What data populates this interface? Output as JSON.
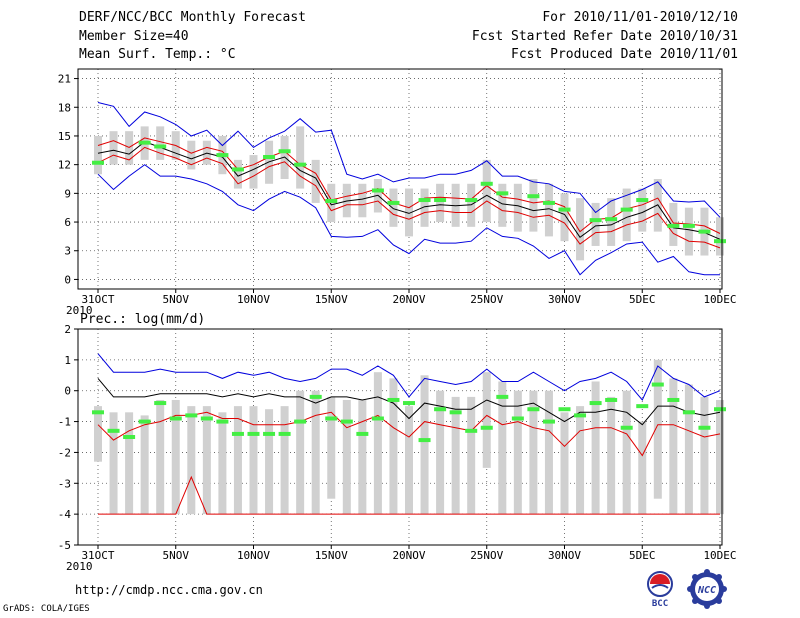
{
  "header": {
    "title": "DERF/NCC/BCC Monthly Forecast",
    "member_size": "Member Size=40",
    "variable": "Mean Surf. Temp.: °C",
    "period": "For 2010/11/01-2010/12/10",
    "started": "Fcst Started Refer Date 2010/10/31",
    "produced": "Fcst Produced Date 2010/11/01"
  },
  "footer": {
    "url": "http://cmdp.ncc.cma.gov.cn",
    "credit": "GrADS: COLA/IGES",
    "logo_bcc": "BCC",
    "logo_ncc": "NCC"
  },
  "colors": {
    "box": "#d0d0d0",
    "median": "#000000",
    "quartile": "#e00000",
    "extreme": "#0000dd",
    "observed": "#44ee44",
    "grid": "#555555"
  },
  "chart_data": [
    {
      "type": "box",
      "title": "Mean Surf. Temp.: °C",
      "ylim": [
        -1,
        22
      ],
      "yticks": [
        0,
        3,
        6,
        9,
        12,
        15,
        18,
        21
      ],
      "xlabels": [
        "31OCT",
        "5NOV",
        "10NOV",
        "15NOV",
        "20NOV",
        "25NOV",
        "30NOV",
        "5DEC",
        "10DEC"
      ],
      "xlabel_positions": [
        1,
        6,
        11,
        16,
        21,
        26,
        31,
        36,
        41
      ],
      "year_label": "2010",
      "x_range": [
        1,
        41
      ],
      "series": {
        "max": [
          18.5,
          18.1,
          16.0,
          17.5,
          17.0,
          16.2,
          15.0,
          15.6,
          14.0,
          15.5,
          13.8,
          14.8,
          15.5,
          16.8,
          15.4,
          15.6,
          11.0,
          10.5,
          11.0,
          10.2,
          10.6,
          10.6,
          11.0,
          11.0,
          11.4,
          12.4,
          10.8,
          10.8,
          10.2,
          10.0,
          9.2,
          9.0,
          7.0,
          8.2,
          8.8,
          9.4,
          10.2,
          8.2,
          8.1,
          8.2,
          6.5
        ],
        "q75": [
          14.0,
          14.5,
          13.8,
          14.8,
          14.4,
          14.0,
          13.2,
          13.8,
          13.4,
          11.5,
          12.0,
          12.8,
          13.4,
          12.0,
          11.1,
          8.3,
          8.7,
          9.0,
          9.5,
          8.0,
          7.5,
          8.5,
          8.6,
          8.5,
          8.4,
          9.8,
          8.6,
          8.4,
          8.0,
          8.2,
          7.6,
          5.0,
          6.3,
          6.4,
          7.4,
          7.8,
          8.5,
          5.9,
          5.8,
          5.6,
          4.8
        ],
        "median": [
          13.2,
          13.5,
          13.1,
          14.4,
          13.8,
          13.2,
          12.6,
          13.2,
          12.8,
          10.8,
          11.5,
          12.3,
          12.8,
          11.4,
          10.6,
          7.8,
          8.2,
          8.4,
          8.8,
          7.4,
          6.9,
          7.6,
          7.8,
          7.7,
          7.8,
          8.8,
          7.9,
          7.7,
          7.2,
          7.4,
          6.8,
          4.4,
          5.6,
          5.7,
          6.5,
          7.0,
          7.8,
          5.4,
          5.2,
          4.9,
          4.2
        ],
        "q25": [
          12.2,
          13.0,
          12.5,
          13.8,
          13.2,
          12.7,
          12.0,
          12.7,
          12.1,
          10.0,
          10.8,
          11.8,
          12.3,
          10.8,
          9.8,
          7.2,
          7.8,
          7.8,
          8.2,
          6.8,
          6.3,
          7.0,
          7.2,
          7.0,
          7.0,
          8.2,
          7.2,
          7.0,
          6.5,
          6.7,
          5.9,
          3.7,
          4.9,
          5.0,
          5.7,
          6.1,
          6.9,
          4.8,
          4.0,
          3.9,
          3.3
        ],
        "min": [
          11.0,
          9.4,
          10.8,
          12.0,
          10.8,
          10.8,
          10.5,
          10.0,
          9.2,
          7.8,
          7.2,
          8.4,
          9.2,
          8.6,
          7.5,
          4.5,
          4.4,
          4.5,
          5.2,
          3.6,
          2.7,
          4.2,
          3.8,
          3.8,
          4.0,
          5.4,
          4.5,
          4.3,
          3.5,
          2.2,
          3.0,
          0.5,
          2.0,
          2.8,
          3.7,
          3.9,
          1.8,
          2.4,
          0.8,
          0.5,
          0.5
        ],
        "box_low": [
          11.0,
          12.0,
          12.0,
          12.5,
          12.5,
          12.5,
          11.5,
          12.0,
          11.0,
          9.5,
          9.5,
          10.0,
          10.5,
          9.5,
          8.0,
          6.0,
          6.5,
          6.5,
          7.0,
          5.5,
          4.5,
          5.5,
          6.0,
          5.5,
          5.5,
          6.0,
          5.5,
          5.0,
          5.0,
          4.5,
          4.0,
          2.0,
          3.5,
          3.5,
          4.0,
          5.0,
          5.0,
          3.5,
          2.5,
          2.5,
          2.5
        ],
        "box_high": [
          15.0,
          15.5,
          15.5,
          16.0,
          16.0,
          15.5,
          14.5,
          14.5,
          15.0,
          12.5,
          13.0,
          14.5,
          15.0,
          16.0,
          12.5,
          10.0,
          10.0,
          10.0,
          10.5,
          9.5,
          9.5,
          9.5,
          10.0,
          10.0,
          10.0,
          12.5,
          10.0,
          10.0,
          10.5,
          10.0,
          9.0,
          8.5,
          8.0,
          8.5,
          9.5,
          9.5,
          10.5,
          8.0,
          7.5,
          7.5,
          6.5
        ],
        "observed": [
          12.2,
          null,
          null,
          14.3,
          13.9,
          null,
          null,
          null,
          13.0,
          11.5,
          null,
          12.8,
          13.4,
          12.0,
          null,
          8.2,
          null,
          null,
          9.3,
          8.0,
          null,
          8.3,
          8.3,
          null,
          8.3,
          10.0,
          9.0,
          null,
          8.7,
          8.0,
          7.3,
          null,
          6.2,
          6.3,
          7.3,
          8.3,
          null,
          5.6,
          5.6,
          5.0,
          4.0
        ]
      }
    },
    {
      "type": "box",
      "title": "Prec.: log(mm/d)",
      "ylim": [
        -5,
        2
      ],
      "yticks": [
        -5,
        -4,
        -3,
        -2,
        -1,
        0,
        1,
        2
      ],
      "xlabels": [
        "31OCT",
        "5NOV",
        "10NOV",
        "15NOV",
        "20NOV",
        "25NOV",
        "30NOV",
        "5DEC",
        "10DEC"
      ],
      "xlabel_positions": [
        1,
        6,
        11,
        16,
        21,
        26,
        31,
        36,
        41
      ],
      "year_label": "2010",
      "x_range": [
        1,
        41
      ],
      "series": {
        "max": [
          1.2,
          0.6,
          0.6,
          0.6,
          0.7,
          0.6,
          0.6,
          0.6,
          0.4,
          0.6,
          0.5,
          0.6,
          0.4,
          0.3,
          0.4,
          0.7,
          0.7,
          0.5,
          0.8,
          0.5,
          -0.2,
          0.4,
          0.3,
          0.2,
          0.3,
          0.7,
          0.3,
          0.3,
          0.6,
          0.3,
          0.0,
          0.3,
          0.4,
          0.6,
          0.3,
          -0.3,
          0.8,
          0.4,
          0.2,
          -0.2,
          0.0
        ],
        "median": [
          0.4,
          -0.2,
          -0.2,
          -0.2,
          -0.1,
          -0.1,
          -0.1,
          -0.1,
          -0.2,
          -0.1,
          -0.2,
          -0.1,
          -0.2,
          -0.2,
          -0.4,
          -0.2,
          -0.2,
          -0.3,
          -0.2,
          -0.4,
          -0.9,
          -0.4,
          -0.5,
          -0.6,
          -0.6,
          -0.3,
          -0.5,
          -0.5,
          -0.4,
          -0.7,
          -1.0,
          -0.7,
          -0.7,
          -0.6,
          -0.7,
          -1.1,
          -0.5,
          -0.5,
          -0.7,
          -0.8,
          -0.7
        ],
        "q25": [
          -1.1,
          -1.6,
          -1.3,
          -1.1,
          -1.0,
          -0.8,
          -0.8,
          -0.7,
          -0.9,
          -0.9,
          -1.1,
          -1.1,
          -1.1,
          -1.0,
          -0.8,
          -0.7,
          -1.2,
          -1.0,
          -0.8,
          -1.2,
          -1.5,
          -1.0,
          -1.1,
          -1.2,
          -1.3,
          -0.8,
          -1.1,
          -1.0,
          -1.2,
          -1.3,
          -1.8,
          -1.3,
          -1.2,
          -1.2,
          -1.4,
          -2.1,
          -1.1,
          -1.1,
          -1.3,
          -1.5,
          -1.4
        ],
        "q25_low": [
          -4.0,
          -4.0,
          -4.0,
          -4.0,
          -4.0,
          -4.0,
          -2.8,
          -4.0,
          -4.0,
          -4.0,
          -4.0,
          -4.0,
          -4.0,
          -4.0,
          -4.0,
          -4.0,
          -4.0,
          -4.0,
          -4.0,
          -4.0,
          -4.0,
          -4.0,
          -4.0,
          -4.0,
          -4.0,
          -4.0,
          -4.0,
          -4.0,
          -4.0,
          -4.0,
          -4.0,
          -4.0,
          -4.0,
          -4.0,
          -4.0,
          -4.0,
          -4.0,
          -4.0,
          -4.0,
          -4.0,
          -4.0
        ],
        "box_low": [
          -2.3,
          -4.0,
          -4.0,
          -4.0,
          -4.0,
          -4.0,
          -4.0,
          -4.0,
          -4.0,
          -4.0,
          -4.0,
          -4.0,
          -4.0,
          -4.0,
          -4.0,
          -3.5,
          -4.0,
          -4.0,
          -4.0,
          -4.0,
          -4.0,
          -4.0,
          -4.0,
          -4.0,
          -4.0,
          -2.5,
          -4.0,
          -4.0,
          -4.0,
          -4.0,
          -4.0,
          -4.0,
          -4.0,
          -4.0,
          -4.0,
          -4.0,
          -3.5,
          -4.0,
          -4.0,
          -4.0,
          -4.0
        ],
        "box_high": [
          -0.5,
          -0.7,
          -0.7,
          -0.8,
          -0.3,
          -0.3,
          -0.5,
          -0.5,
          -0.7,
          -0.5,
          -0.5,
          -0.6,
          -0.5,
          0.0,
          0.0,
          -0.2,
          -0.3,
          -0.3,
          0.6,
          0.4,
          -0.5,
          0.5,
          0.0,
          -0.2,
          -0.2,
          0.6,
          0.3,
          0.0,
          0.0,
          0.0,
          -0.7,
          -0.5,
          0.3,
          -0.2,
          0.0,
          -1.0,
          1.0,
          0.4,
          0.2,
          -0.2,
          -0.3
        ],
        "observed": [
          -0.7,
          -1.3,
          -1.5,
          -1.0,
          -0.4,
          -0.9,
          -0.8,
          -0.9,
          -1.0,
          -1.4,
          -1.4,
          -1.4,
          -1.4,
          -1.0,
          -0.2,
          -0.9,
          -1.0,
          -1.4,
          -0.9,
          -0.3,
          -0.4,
          -1.6,
          -0.6,
          -0.7,
          -1.3,
          -1.2,
          -0.2,
          -0.9,
          -0.6,
          -1.0,
          -0.6,
          -0.8,
          -0.4,
          -0.3,
          -1.2,
          -0.5,
          0.2,
          -0.3,
          -0.7,
          -1.2,
          -0.6
        ]
      }
    }
  ]
}
